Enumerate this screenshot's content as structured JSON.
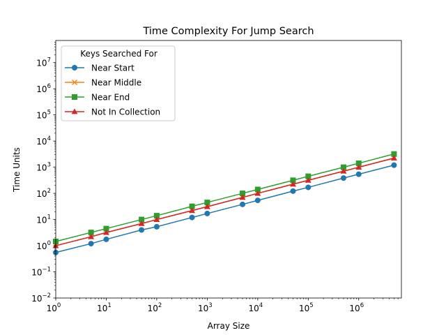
{
  "chart_data": {
    "type": "line",
    "title": "Time Complexity For Jump Search",
    "xlabel": "Array Size",
    "ylabel": "Time Units",
    "xscale": "log",
    "yscale": "log",
    "xlim": [
      1,
      7000000
    ],
    "ylim": [
      0.01,
      70000000
    ],
    "x_ticks": [
      {
        "value": 1,
        "base": "10",
        "exp": "0"
      },
      {
        "value": 10,
        "base": "10",
        "exp": "1"
      },
      {
        "value": 100,
        "base": "10",
        "exp": "2"
      },
      {
        "value": 1000,
        "base": "10",
        "exp": "3"
      },
      {
        "value": 10000,
        "base": "10",
        "exp": "4"
      },
      {
        "value": 100000,
        "base": "10",
        "exp": "5"
      },
      {
        "value": 1000000,
        "base": "10",
        "exp": "6"
      }
    ],
    "y_ticks": [
      {
        "value": 0.01,
        "base": "10",
        "exp": "−2"
      },
      {
        "value": 0.1,
        "base": "10",
        "exp": "−1"
      },
      {
        "value": 1,
        "base": "10",
        "exp": "0"
      },
      {
        "value": 10,
        "base": "10",
        "exp": "1"
      },
      {
        "value": 100,
        "base": "10",
        "exp": "2"
      },
      {
        "value": 1000,
        "base": "10",
        "exp": "3"
      },
      {
        "value": 10000,
        "base": "10",
        "exp": "4"
      },
      {
        "value": 100000,
        "base": "10",
        "exp": "5"
      },
      {
        "value": 1000000,
        "base": "10",
        "exp": "6"
      },
      {
        "value": 10000000,
        "base": "10",
        "exp": "7"
      }
    ],
    "grid": false,
    "legend": {
      "title": "Keys Searched For",
      "placement": "top-left"
    },
    "x": [
      1,
      5,
      10,
      50,
      100,
      500,
      1000,
      5000,
      10000,
      50000,
      100000,
      500000,
      1000000,
      5000000
    ],
    "series": [
      {
        "name": "Near Start",
        "color": "#1f77b4",
        "marker": "circle",
        "values": [
          0.55,
          1.2,
          1.75,
          4.0,
          5.3,
          12.0,
          17.0,
          38.0,
          54.0,
          122.0,
          170.0,
          385.0,
          540.0,
          1200.0
        ]
      },
      {
        "name": "Near Middle",
        "color": "#ff7f0e",
        "marker": "x",
        "values": [
          1.0,
          2.2,
          3.2,
          7.0,
          10.0,
          22.0,
          31.0,
          70.0,
          100.0,
          225.0,
          316.0,
          707.0,
          1000.0,
          2240.0
        ]
      },
      {
        "name": "Near End",
        "color": "#2ca02c",
        "marker": "square",
        "values": [
          1.45,
          3.2,
          4.5,
          10.0,
          14.0,
          32.0,
          45.0,
          100.0,
          141.0,
          316.0,
          450.0,
          1000.0,
          1414.0,
          3200.0
        ]
      },
      {
        "name": "Not In Collection",
        "color": "#d62728",
        "marker": "triangle",
        "values": [
          1.0,
          2.2,
          3.2,
          7.0,
          10.0,
          22.0,
          31.0,
          70.0,
          100.0,
          225.0,
          316.0,
          707.0,
          1000.0,
          2240.0
        ]
      }
    ]
  }
}
